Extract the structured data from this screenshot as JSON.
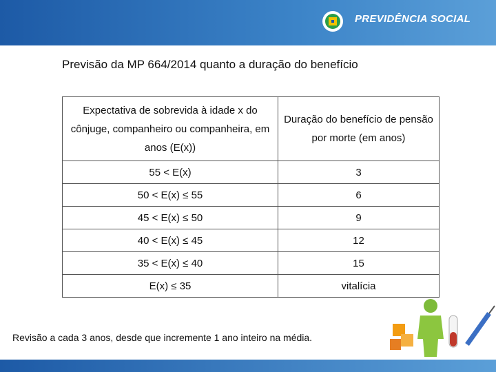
{
  "header": {
    "logo_text": "PREVIDÊNCIA SOCIAL"
  },
  "title": "Previsão da MP 664/2014 quanto a duração do benefício",
  "table": {
    "headers": [
      "Expectativa de sobrevida à idade x do cônjuge, companheiro ou companheira, em anos (E(x))",
      "Duração do benefício de pensão por morte (em anos)"
    ],
    "rows": [
      [
        "55 < E(x)",
        3
      ],
      [
        "50 < E(x) ≤ 55",
        6
      ],
      [
        "45 < E(x) ≤ 50",
        9
      ],
      [
        "40 < E(x) ≤ 45",
        12
      ],
      [
        "35 < E(x) ≤ 40",
        15
      ],
      [
        "E(x) ≤ 35",
        "vitalícia"
      ]
    ]
  },
  "footnote": "Revisão a cada 3 anos, desde que incremente 1 ano inteiro na média."
}
